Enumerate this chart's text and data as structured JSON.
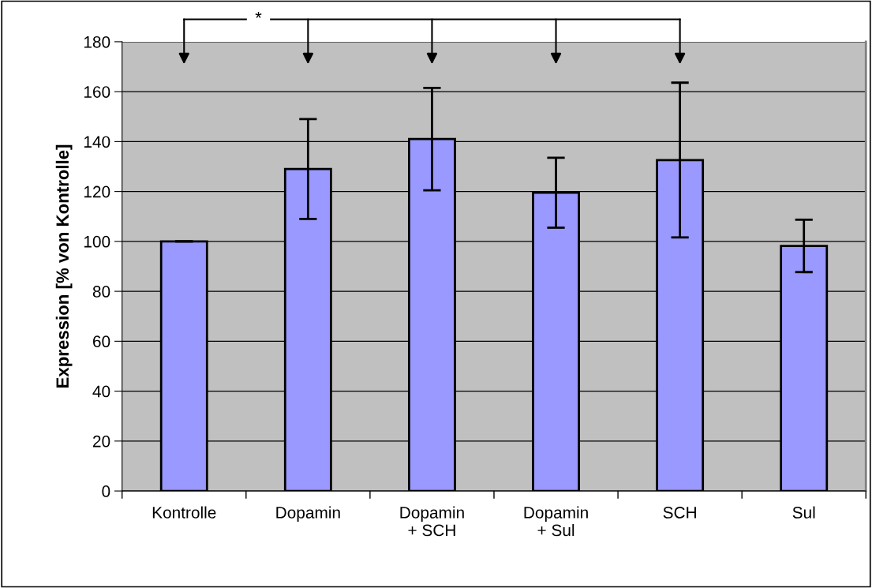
{
  "chart_data": {
    "type": "bar",
    "ylabel": "Expression [% von Kontrolle]",
    "categories": [
      "Kontrolle",
      "Dopamin",
      "Dopamin\n+ SCH",
      "Dopamin\n+ Sul",
      "SCH",
      "Sul"
    ],
    "values": [
      100,
      129,
      141,
      119.5,
      132.6,
      98.2
    ],
    "errors": [
      0,
      20,
      20.5,
      14,
      31,
      10.5
    ],
    "color": "#9999ff",
    "ylim": [
      0,
      180
    ],
    "yticks": [
      0,
      20,
      40,
      60,
      80,
      100,
      120,
      140,
      160,
      180
    ],
    "grid": "y",
    "annotations": [
      "*"
    ]
  }
}
